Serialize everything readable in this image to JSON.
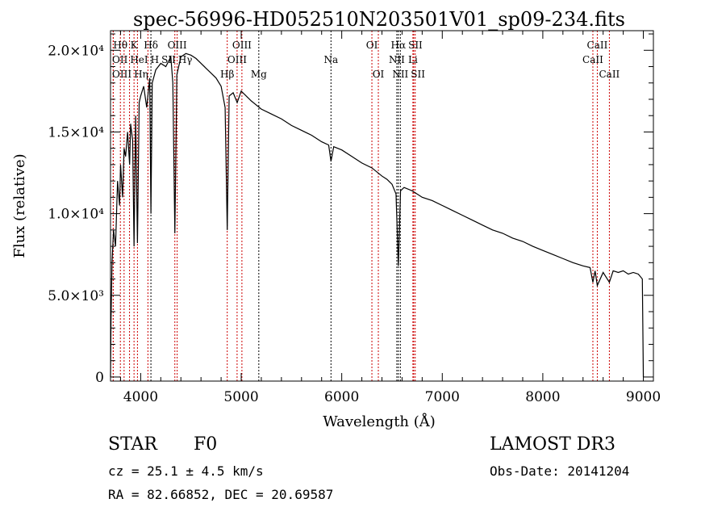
{
  "chart_data": {
    "type": "line",
    "title": "spec-56996-HD052510N203501V01_sp09-234.fits",
    "xlabel": "Wavelength (Å)",
    "ylabel": "Flux (relative)",
    "xlim": [
      3700,
      9100
    ],
    "ylim": [
      -250,
      21200
    ],
    "xticks": [
      4000,
      5000,
      6000,
      7000,
      8000,
      9000
    ],
    "xtick_labels": [
      "4000",
      "5000",
      "6000",
      "7000",
      "8000",
      "9000"
    ],
    "yticks": [
      0,
      5000,
      10000,
      15000,
      20000
    ],
    "ytick_labels": [
      "0",
      "5.0×10³",
      "1.0×10⁴",
      "1.5×10⁴",
      "2.0×10⁴"
    ],
    "grid": false,
    "series": [
      {
        "name": "spectrum",
        "x": [
          3700,
          3705,
          3715,
          3730,
          3750,
          3770,
          3790,
          3800,
          3820,
          3835,
          3850,
          3870,
          3890,
          3900,
          3920,
          3934,
          3950,
          3968,
          3985,
          4000,
          4030,
          4060,
          4090,
          4102,
          4115,
          4150,
          4200,
          4250,
          4300,
          4320,
          4340,
          4360,
          4400,
          4450,
          4500,
          4550,
          4600,
          4650,
          4700,
          4750,
          4800,
          4840,
          4861,
          4880,
          4920,
          4960,
          5000,
          5100,
          5200,
          5300,
          5400,
          5500,
          5600,
          5700,
          5800,
          5870,
          5893,
          5920,
          6000,
          6100,
          6200,
          6300,
          6400,
          6450,
          6500,
          6540,
          6563,
          6585,
          6620,
          6700,
          6800,
          6900,
          7000,
          7100,
          7200,
          7300,
          7400,
          7500,
          7600,
          7700,
          7800,
          7900,
          8000,
          8100,
          8200,
          8300,
          8400,
          8470,
          8498,
          8520,
          8542,
          8600,
          8662,
          8700,
          8750,
          8800,
          8850,
          8900,
          8950,
          8990,
          9000
        ],
        "y": [
          0,
          3500,
          7000,
          9000,
          8000,
          12000,
          10500,
          13000,
          11000,
          14000,
          13500,
          15000,
          13000,
          15500,
          14500,
          8000,
          16000,
          8200,
          16800,
          17200,
          17800,
          16500,
          18300,
          10000,
          18000,
          18800,
          19200,
          19000,
          19600,
          18000,
          8800,
          18500,
          19600,
          19800,
          19700,
          19500,
          19200,
          18900,
          18600,
          18300,
          17800,
          16500,
          9000,
          17200,
          17400,
          16800,
          17500,
          16900,
          16400,
          16100,
          15800,
          15400,
          15100,
          14800,
          14400,
          14200,
          13200,
          14100,
          13900,
          13500,
          13100,
          12800,
          12300,
          12100,
          11800,
          11200,
          6800,
          11400,
          11600,
          11400,
          11000,
          10800,
          10500,
          10200,
          9900,
          9600,
          9300,
          9000,
          8800,
          8500,
          8300,
          8000,
          7750,
          7500,
          7250,
          7000,
          6800,
          6700,
          5800,
          6500,
          5600,
          6400,
          5800,
          6500,
          6400,
          6500,
          6300,
          6400,
          6300,
          6000,
          0
        ]
      }
    ],
    "line_labels": [
      {
        "text": "Hθ",
        "wavelength": 3798,
        "row": 1,
        "color": "#cc0000"
      },
      {
        "text": "K",
        "wavelength": 3934,
        "row": 1,
        "color": "#cc0000"
      },
      {
        "text": "Hδ",
        "wavelength": 4102,
        "row": 1,
        "color": "#000000"
      },
      {
        "text": "OIII",
        "wavelength": 4363,
        "row": 1,
        "color": "#cc0000"
      },
      {
        "text": "OIII",
        "wavelength": 5007,
        "row": 1,
        "color": "#cc0000"
      },
      {
        "text": "OI",
        "wavelength": 6300,
        "row": 1,
        "color": "#cc0000"
      },
      {
        "text": "Hα",
        "wavelength": 6563,
        "row": 1,
        "color": "#000000"
      },
      {
        "text": "SII",
        "wavelength": 6716,
        "row": 1,
        "color": "#cc0000"
      },
      {
        "text": "CaII",
        "wavelength": 8542,
        "row": 1,
        "color": "#cc0000"
      },
      {
        "text": "OII",
        "wavelength": 3727,
        "row": 2,
        "color": "#cc0000"
      },
      {
        "text": "HeI",
        "wavelength": 3889,
        "row": 2,
        "color": "#cc0000"
      },
      {
        "text": "SII",
        "wavelength": 4072,
        "row": 2,
        "color": "#cc0000"
      },
      {
        "text": "H",
        "wavelength": 3968,
        "row": 2,
        "color": "#cc0000"
      },
      {
        "text": "Hγ",
        "wavelength": 4340,
        "row": 2,
        "color": "#cc0000"
      },
      {
        "text": "OIII",
        "wavelength": 4959,
        "row": 2,
        "color": "#cc0000"
      },
      {
        "text": "Na",
        "wavelength": 5893,
        "row": 2,
        "color": "#000000"
      },
      {
        "text": "NII",
        "wavelength": 6548,
        "row": 2,
        "color": "#000000"
      },
      {
        "text": "Li",
        "wavelength": 6708,
        "row": 2,
        "color": "#cc0000"
      },
      {
        "text": "CaII",
        "wavelength": 8498,
        "row": 2,
        "color": "#cc0000"
      },
      {
        "text": "OIII",
        "wavelength": 3727,
        "row": 3,
        "color": "#cc0000"
      },
      {
        "text": "Hη",
        "wavelength": 3835,
        "row": 3,
        "color": "#cc0000"
      },
      {
        "text": "Hβ",
        "wavelength": 4861,
        "row": 3,
        "color": "#cc0000"
      },
      {
        "text": "Mg",
        "wavelength": 5175,
        "row": 3,
        "color": "#000000"
      },
      {
        "text": "OI",
        "wavelength": 6364,
        "row": 3,
        "color": "#cc0000"
      },
      {
        "text": "NII",
        "wavelength": 6583,
        "row": 3,
        "color": "#000000"
      },
      {
        "text": "SII",
        "wavelength": 6731,
        "row": 3,
        "color": "#cc0000"
      },
      {
        "text": "CaII",
        "wavelength": 8662,
        "row": 3,
        "color": "#cc0000"
      }
    ]
  },
  "info": {
    "object_type": "STAR",
    "subclass": "F0",
    "survey": "LAMOST DR3",
    "cz": "cz = 25.1 ± 4.5 km/s",
    "obs_date": "Obs-Date: 20141204",
    "coords": "RA =  82.66852, DEC =  20.69587"
  }
}
